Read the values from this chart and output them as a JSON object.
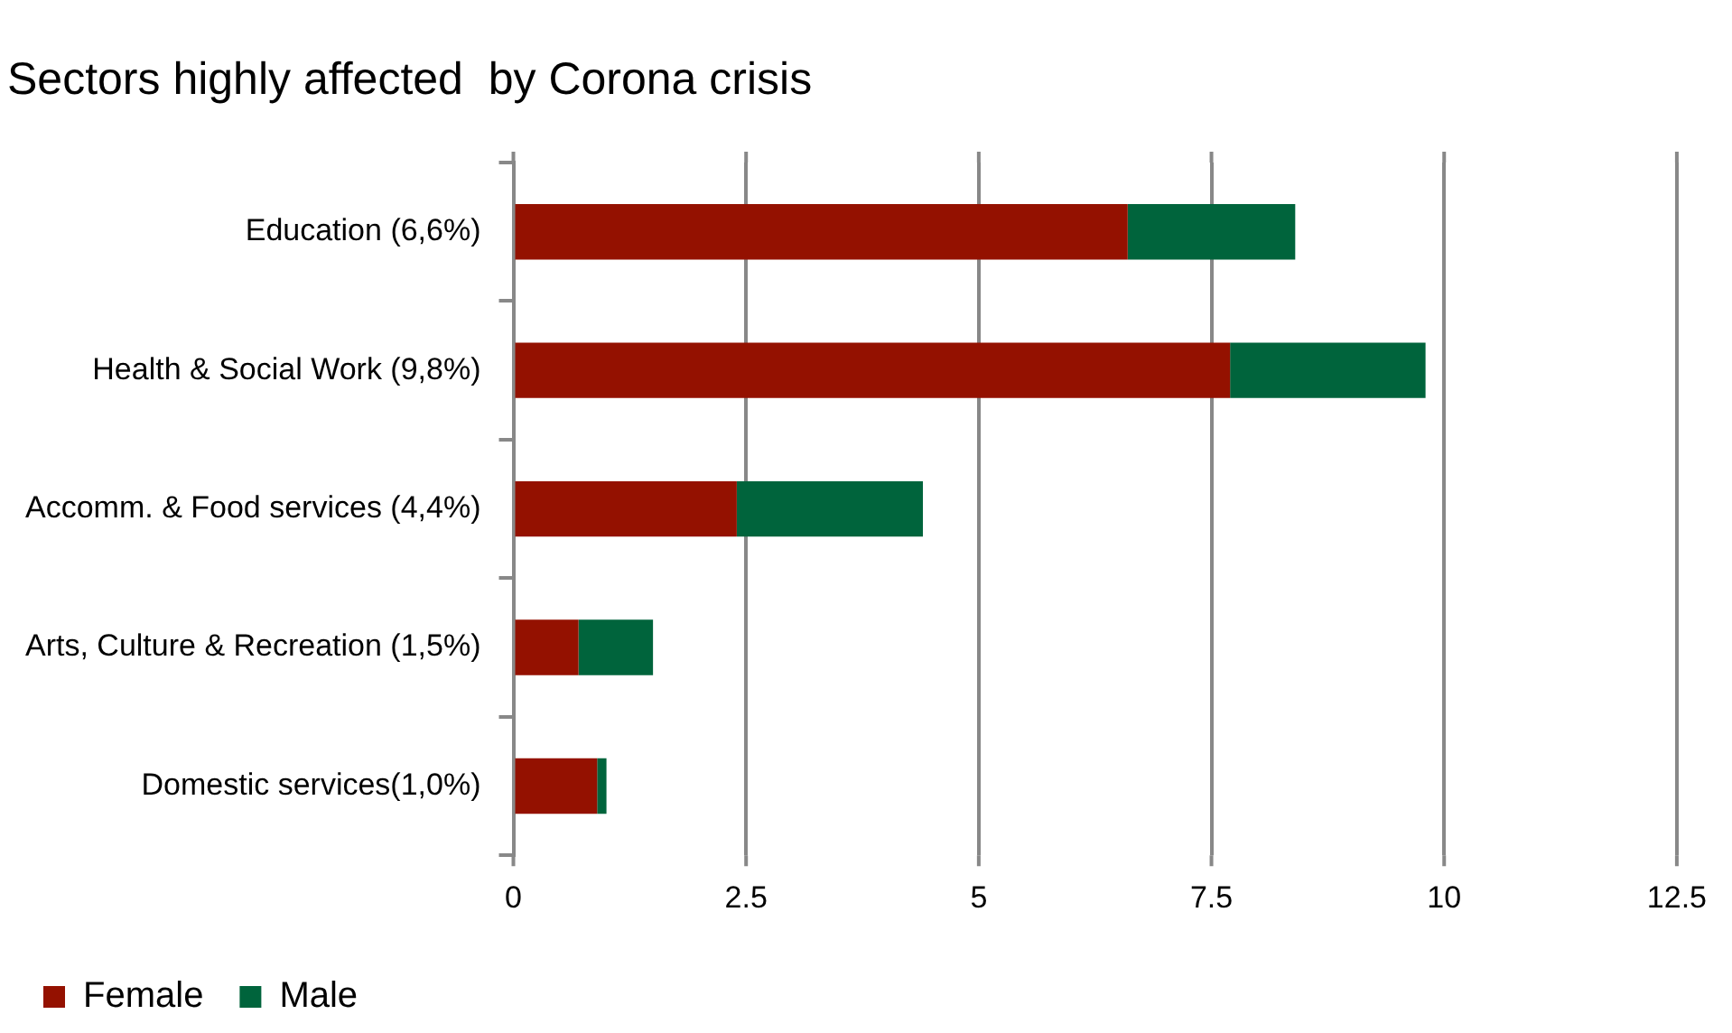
{
  "chart_data": {
    "type": "bar",
    "orientation": "horizontal",
    "stacked": true,
    "title": "Sectors highly affected  by Corona crisis",
    "categories": [
      "Education (6,6%)",
      "Health & Social Work (9,8%)",
      "Accomm. & Food services (4,4%)",
      "Arts, Culture & Recreation (1,5%)",
      "Domestic services(1,0%)"
    ],
    "series": [
      {
        "name": "Female",
        "color": "#941100",
        "values": [
          6.6,
          7.7,
          2.4,
          0.7,
          0.9
        ]
      },
      {
        "name": "Male",
        "color": "#00643c",
        "values": [
          1.8,
          2.1,
          2.0,
          0.8,
          0.1
        ]
      }
    ],
    "xlim": [
      0,
      12.5
    ],
    "xticks": [
      0,
      2.5,
      5,
      7.5,
      10,
      12.5
    ],
    "grid": "x",
    "legend": "bottom left"
  }
}
